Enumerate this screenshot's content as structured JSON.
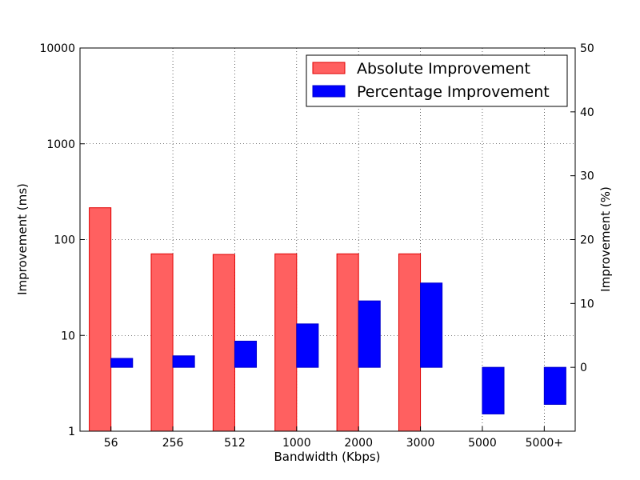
{
  "chart_data": {
    "type": "bar",
    "title": "",
    "xlabel": "Bandwidth (Kbps)",
    "ylabel": "Improvement (ms)",
    "y2label": "Improvement (%)",
    "categories": [
      "56",
      "256",
      "512",
      "1000",
      "2000",
      "3000",
      "5000",
      "5000+"
    ],
    "yscale": "log",
    "ylim": [
      1,
      10000
    ],
    "y_ticks": [
      "1",
      "10",
      "100",
      "1000",
      "10000"
    ],
    "y2lim": [
      -10,
      50
    ],
    "y2_ticks": [
      "0",
      "10",
      "20",
      "30",
      "40",
      "50"
    ],
    "grid": true,
    "legend_position": "top-right",
    "series": [
      {
        "name": "Absolute Improvement",
        "axis": "left",
        "color": "#ff6060",
        "edge_color": "#e00000",
        "values": [
          215,
          71,
          70,
          71,
          71,
          71,
          null,
          null
        ]
      },
      {
        "name": "Percentage Improvement",
        "axis": "right",
        "color": "#0000ff",
        "edge_color": "#0000cc",
        "values": [
          1.4,
          1.8,
          4.1,
          6.8,
          10.4,
          13.2,
          -7.3,
          -5.8
        ]
      }
    ]
  }
}
